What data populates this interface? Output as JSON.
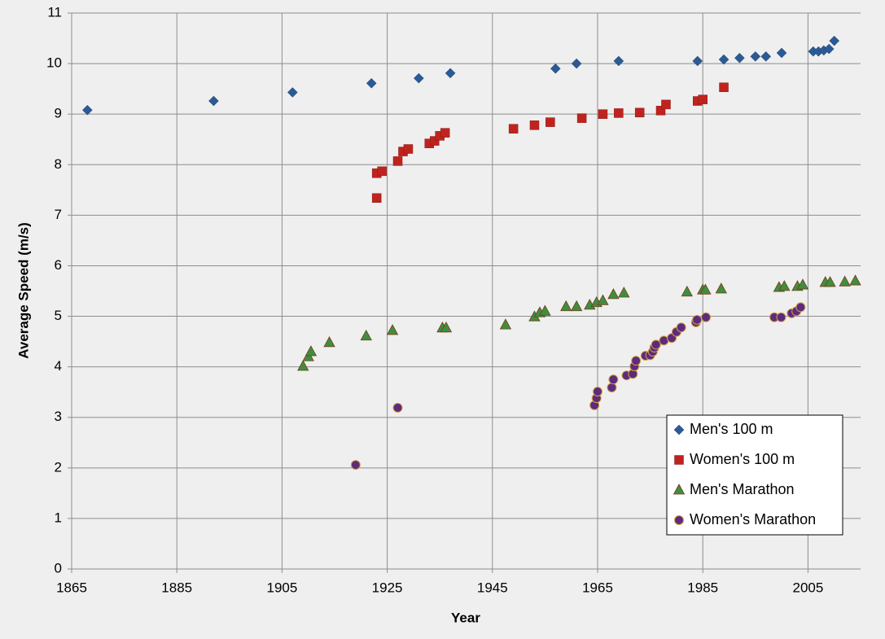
{
  "chart_data": {
    "type": "scatter",
    "x_label": "Year",
    "y_label": "Average Speed (m/s)",
    "xlim": [
      1865,
      2015
    ],
    "ylim": [
      0,
      11
    ],
    "xticks": [
      1865,
      1885,
      1905,
      1925,
      1945,
      1965,
      1985,
      2005
    ],
    "yticks": [
      0,
      1,
      2,
      3,
      4,
      5,
      6,
      7,
      8,
      9,
      10,
      11
    ],
    "grid": true,
    "legend": "bottom-right",
    "series": [
      {
        "name": "Men's 100 m",
        "color": "#2b5b96",
        "marker": "diamond",
        "x": [
          1868,
          1892,
          1907,
          1922,
          1931,
          1937,
          1957,
          1961,
          1969,
          1984,
          1989,
          1992,
          1995,
          1997,
          2000,
          2006,
          2007,
          2008,
          2009,
          2010
        ],
        "values": [
          9.08,
          9.26,
          9.43,
          9.61,
          9.71,
          9.81,
          9.9,
          10.0,
          10.05,
          10.05,
          10.08,
          10.11,
          10.14,
          10.14,
          10.21,
          10.24,
          10.24,
          10.26,
          10.29,
          10.45
        ]
      },
      {
        "name": "Women's 100 m",
        "color": "#c0231e",
        "marker": "square",
        "x": [
          1923,
          1923,
          1924,
          1927,
          1928,
          1929,
          1933,
          1934,
          1935,
          1936,
          1949,
          1953,
          1956,
          1962,
          1966,
          1969,
          1973,
          1977,
          1978,
          1984,
          1985,
          1989
        ],
        "values": [
          7.34,
          7.83,
          7.87,
          8.07,
          8.26,
          8.31,
          8.42,
          8.47,
          8.57,
          8.63,
          8.71,
          8.78,
          8.84,
          8.92,
          9.0,
          9.02,
          9.03,
          9.07,
          9.19,
          9.26,
          9.29,
          9.53
        ]
      },
      {
        "name": "Men's Marathon",
        "color": "#3d8f3f",
        "marker": "triangle",
        "x": [
          1909,
          1910,
          1910.5,
          1914,
          1921,
          1926,
          1935.5,
          1936.2,
          1947.5,
          1953,
          1954,
          1955,
          1959,
          1961,
          1963.5,
          1964.8,
          1966,
          1968,
          1970,
          1982,
          1985,
          1985.5,
          1988.5,
          1999.5,
          2000.5,
          2003,
          2004,
          2008.3,
          2009.2,
          2012,
          2014
        ],
        "values": [
          4.01,
          4.2,
          4.3,
          4.48,
          4.61,
          4.72,
          4.77,
          4.77,
          4.83,
          4.99,
          5.07,
          5.1,
          5.19,
          5.19,
          5.22,
          5.27,
          5.31,
          5.43,
          5.46,
          5.48,
          5.52,
          5.52,
          5.54,
          5.57,
          5.59,
          5.59,
          5.62,
          5.67,
          5.67,
          5.68,
          5.7
        ]
      },
      {
        "name": "Women's Marathon",
        "color": "#5b2c7c",
        "marker": "circle",
        "x": [
          1919,
          1927,
          1964.4,
          1964.8,
          1965,
          1967.7,
          1968,
          1970.5,
          1971.7,
          1972,
          1972.3,
          1974.1,
          1975,
          1975.5,
          1975.8,
          1976.1,
          1977.6,
          1979.1,
          1980,
          1980.9,
          1983.7,
          1983.9,
          1985.6,
          1998.6,
          1999.9,
          2001.9,
          2002.8,
          2003.6
        ],
        "values": [
          2.06,
          3.19,
          3.24,
          3.38,
          3.51,
          3.59,
          3.75,
          3.83,
          3.86,
          4.01,
          4.12,
          4.22,
          4.23,
          4.3,
          4.38,
          4.44,
          4.52,
          4.57,
          4.69,
          4.78,
          4.88,
          4.93,
          4.98,
          4.98,
          4.98,
          5.06,
          5.1,
          5.18
        ]
      }
    ]
  }
}
